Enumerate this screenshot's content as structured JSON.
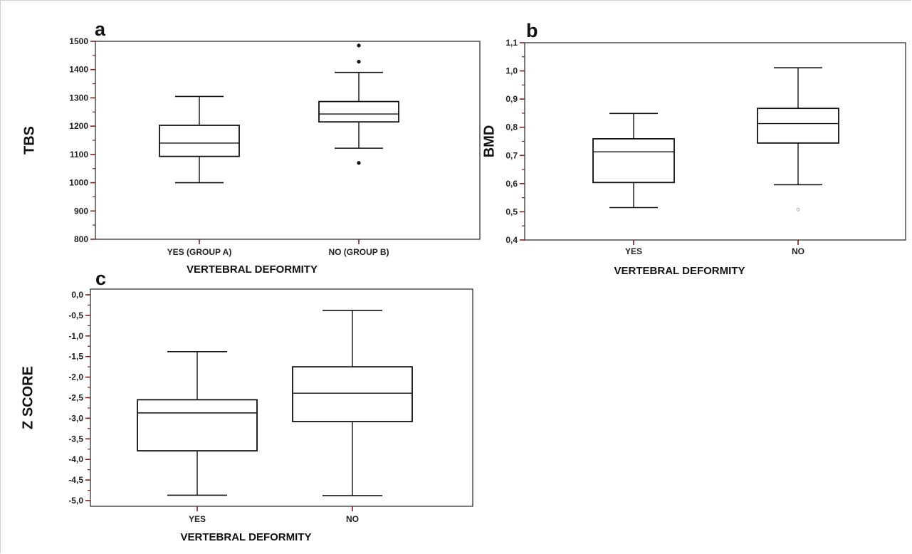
{
  "chart_data": [
    {
      "type": "box",
      "panel_label": "a",
      "ylabel": "TBS",
      "xlabel": "VERTEBRAL DEFORMITY",
      "ylim": [
        800,
        1500
      ],
      "yticks": [
        800,
        900,
        1000,
        1100,
        1200,
        1300,
        1400,
        1500
      ],
      "ytick_labels": [
        "800",
        "900",
        "1000",
        "1100",
        "1200",
        "1300",
        "1400",
        "1500"
      ],
      "categories": [
        "YES (GROUP A)",
        "NO (GROUP B)"
      ],
      "boxes": [
        {
          "whisker_low": 1000,
          "q1": 1093,
          "median": 1140,
          "q3": 1203,
          "whisker_high": 1305,
          "outliers": []
        },
        {
          "whisker_low": 1122,
          "q1": 1215,
          "median": 1243,
          "q3": 1287,
          "whisker_high": 1390,
          "outliers": [
            1070,
            1428,
            1485
          ]
        }
      ],
      "grid": false
    },
    {
      "type": "box",
      "panel_label": "b",
      "ylabel": "BMD",
      "xlabel": "VERTEBRAL DEFORMITY",
      "ylim": [
        0.4,
        1.1
      ],
      "yticks": [
        0.4,
        0.5,
        0.6,
        0.7,
        0.8,
        0.9,
        1.0,
        1.1
      ],
      "ytick_labels": [
        "0,4",
        "0,5",
        "0,6",
        "0,7",
        "0,8",
        "0,9",
        "1,0",
        "1,1"
      ],
      "categories": [
        "YES",
        "NO"
      ],
      "boxes": [
        {
          "whisker_low": 0.515,
          "q1": 0.604,
          "median": 0.713,
          "q3": 0.759,
          "whisker_high": 0.849,
          "outliers": []
        },
        {
          "whisker_low": 0.596,
          "q1": 0.744,
          "median": 0.813,
          "q3": 0.867,
          "whisker_high": 1.011,
          "outliers": [
            0.508
          ]
        }
      ],
      "grid": false
    },
    {
      "type": "box",
      "panel_label": "c",
      "ylabel": "Z SCORE",
      "xlabel": "VERTEBRAL DEFORMITY",
      "ylim": [
        -5.1,
        0.1
      ],
      "yticks": [
        0.0,
        -0.5,
        -1.0,
        -1.5,
        -2.0,
        -2.5,
        -3.0,
        -3.5,
        -4.0,
        -4.5,
        -5.0
      ],
      "ytick_labels": [
        "0,0",
        "-0,5",
        "-1,0",
        "-1,5",
        "-2,0",
        "-2,5",
        "-3,0",
        "-3,5",
        "-4,0",
        "-4,5",
        "-5,0"
      ],
      "categories": [
        "YES",
        "NO"
      ],
      "boxes": [
        {
          "whisker_low": -4.87,
          "q1": -3.79,
          "median": -2.87,
          "q3": -2.55,
          "whisker_high": -1.38,
          "outliers": []
        },
        {
          "whisker_low": -4.88,
          "q1": -3.08,
          "median": -2.39,
          "q3": -1.75,
          "whisker_high": -0.38,
          "outliers": []
        }
      ],
      "grid": false
    }
  ]
}
